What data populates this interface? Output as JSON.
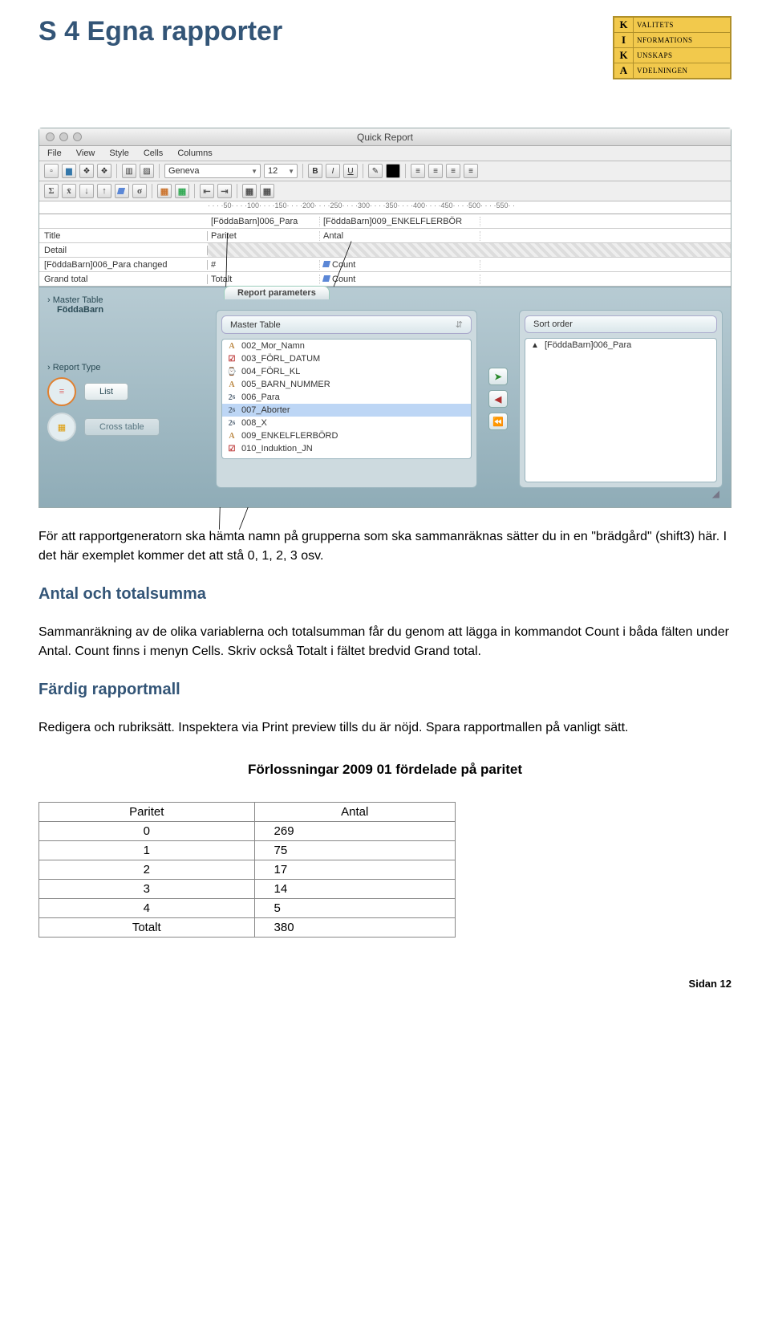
{
  "page_heading": "S 4    Egna rapporter",
  "kika": [
    {
      "l": "K",
      "w": "VALITETS"
    },
    {
      "l": "I",
      "w": "NFORMATIONS"
    },
    {
      "l": "K",
      "w": "UNSKAPS"
    },
    {
      "l": "A",
      "w": "VDELNINGEN"
    }
  ],
  "window_title": "Quick Report",
  "menubar": [
    "File",
    "View",
    "Style",
    "Cells",
    "Columns"
  ],
  "font_name": "Geneva",
  "font_size": "12",
  "ruler_text": "· · · ·50· · · ·100· · · ·150· · · ·200· · · ·250· · · ·300· · · ·350· · · ·400· · · ·450· · · ·500· · · ·550· ·",
  "grid": {
    "header_row": [
      "[FöddaBarn]006_Para",
      "[FöddaBarn]009_ENKELFLERBÖR"
    ],
    "rows": [
      {
        "label": "Title",
        "c1": "Paritet",
        "c2": "Antal"
      },
      {
        "label": "Detail",
        "hatched": true
      },
      {
        "label": "[FöddaBarn]006_Para changed",
        "c1": "#",
        "c2": "Count",
        "nflag2": true
      },
      {
        "label": "Grand total",
        "c1": "Totalt",
        "c2": "Count",
        "nflag2": true
      }
    ]
  },
  "rp": {
    "tab": "Report parameters",
    "master_label": "Master Table",
    "master_value": "FöddaBarn",
    "rt_label": "Report Type",
    "rt_list": "List",
    "rt_cross": "Cross table",
    "left_tab": "Master Table",
    "right_tab": "Sort order",
    "fields": [
      {
        "ico": "A",
        "name": "002_Mor_Namn"
      },
      {
        "ico": "Z",
        "name": "003_FÖRL_DATUM"
      },
      {
        "ico": "N",
        "name": "004_FÖRL_KL"
      },
      {
        "ico": "A",
        "name": "005_BARN_NUMMER"
      },
      {
        "ico": "2",
        "name": "006_Para"
      },
      {
        "ico": "2",
        "name": "007_Aborter",
        "sel": true
      },
      {
        "ico": "2",
        "name": "008_X"
      },
      {
        "ico": "A",
        "name": "009_ENKELFLERBÖRD"
      },
      {
        "ico": "Z",
        "name": "010_Induktion_JN"
      }
    ],
    "sort_item": "[FöddaBarn]006_Para"
  },
  "para1": "För att rapportgeneratorn ska hämta namn på grupperna som ska sammanräknas sätter du in en \"brädgård\" (shift3) här. I det här exemplet kommer det att stå 0, 1, 2, 3 osv.",
  "h_antal": "Antal och totalsumma",
  "para2": "Sammanräkning av de olika variablerna och totalsumman får du genom att lägga in kommandot Count i båda fälten under Antal. Count finns i menyn Cells. Skriv också Totalt i fältet bredvid Grand total.",
  "h_mall": "Färdig rapportmall",
  "para3": "Redigera och rubriksätt. Inspektera via Print preview tills du är nöjd. Spara rapportmallen på vanligt sätt.",
  "result_title": "Förlossningar 2009 01 fördelade på paritet",
  "table": {
    "headers": [
      "Paritet",
      "Antal"
    ],
    "rows": [
      [
        "0",
        "269"
      ],
      [
        "1",
        "75"
      ],
      [
        "2",
        "17"
      ],
      [
        "3",
        "14"
      ],
      [
        "4",
        "5"
      ],
      [
        "Totalt",
        "380"
      ]
    ]
  },
  "page_number": "Sidan 12"
}
